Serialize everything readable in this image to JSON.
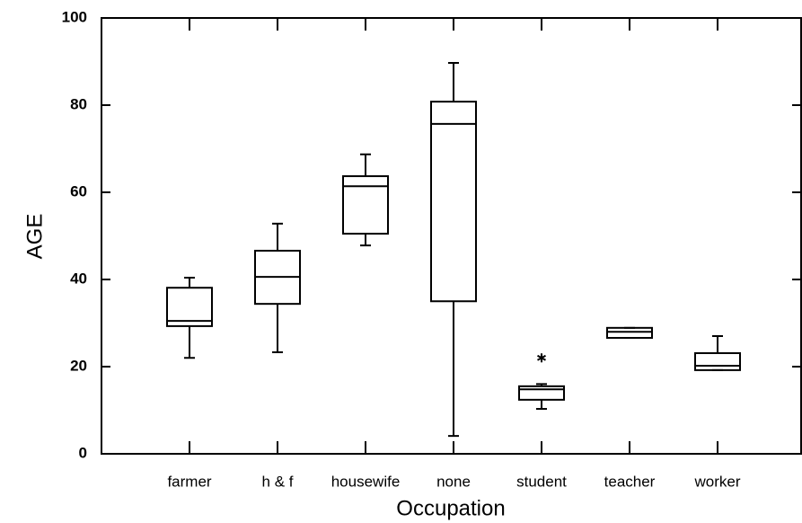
{
  "chart_data": {
    "type": "box",
    "xlabel": "Occupation",
    "ylabel": "AGE",
    "categories": [
      "farmer",
      "h & f",
      "housewife",
      "none",
      "student",
      "teacher",
      "worker"
    ],
    "whislo": [
      22,
      23.3,
      47.8,
      4.1,
      10.3,
      26.6,
      19.2
    ],
    "q1": [
      29.3,
      34.4,
      50.5,
      35,
      12.4,
      26.6,
      19.2
    ],
    "med": [
      30.5,
      40.6,
      61.4,
      75.7,
      14.8,
      28,
      20.2
    ],
    "q3": [
      38.1,
      46.6,
      63.7,
      80.8,
      15.5,
      28.9,
      23.1
    ],
    "whishi": [
      40.4,
      52.8,
      68.7,
      89.7,
      16,
      28.9,
      27
    ],
    "outliers": [
      [],
      [],
      [],
      [],
      [
        22
      ],
      [],
      []
    ],
    "color": "#000000",
    "ylim": [
      0,
      100
    ],
    "yticks": [
      0,
      20,
      40,
      60,
      80,
      100
    ]
  }
}
